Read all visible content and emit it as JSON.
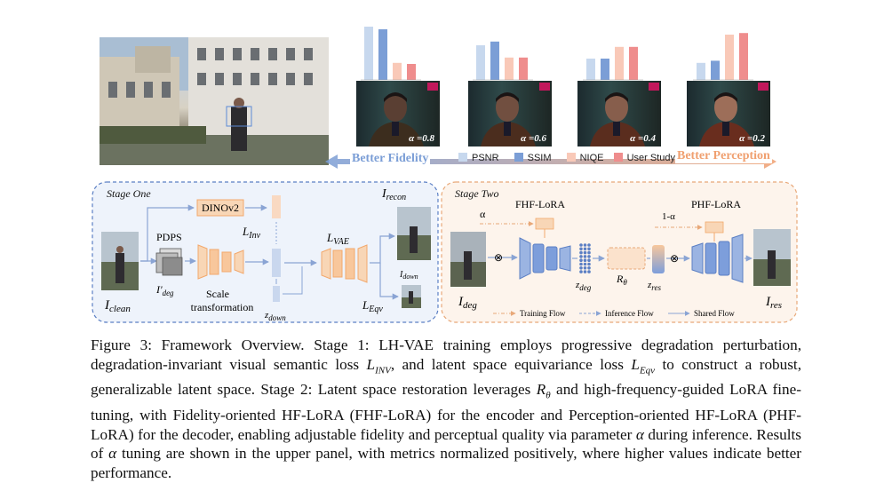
{
  "top_panel": {
    "alpha_labels": [
      "α =0.8",
      "α =0.6",
      "α =0.4",
      "α =0.2"
    ],
    "arrow_left_label": "Better Fidelity",
    "arrow_right_label": "Better Perception",
    "legend": [
      {
        "label": "PSNR",
        "color": "#c7d8ee"
      },
      {
        "label": "SSIM",
        "color": "#7b9ed6"
      },
      {
        "label": "NIQE",
        "color": "#f9c9b8"
      },
      {
        "label": "User Study",
        "color": "#ef8d8d"
      }
    ],
    "metric_bars": [
      {
        "alpha": "0.8",
        "values": [
          1.0,
          0.95,
          0.32,
          0.3
        ]
      },
      {
        "alpha": "0.6",
        "values": [
          0.65,
          0.72,
          0.42,
          0.42
        ]
      },
      {
        "alpha": "0.4",
        "values": [
          0.4,
          0.4,
          0.62,
          0.62
        ]
      },
      {
        "alpha": "0.2",
        "values": [
          0.32,
          0.36,
          0.85,
          0.88
        ]
      }
    ]
  },
  "stage_one": {
    "title": "Stage One",
    "dinov2": "DINOv2",
    "pdps": "PDPS",
    "scale_line1": "Scale",
    "scale_line2": "transformation",
    "L_inv": "L",
    "L_inv_sub": "Inv",
    "L_vae": "L",
    "L_vae_sub": "VAE",
    "L_eqv": "L",
    "L_eqv_sub": "Eqv",
    "I_recon": "I",
    "I_recon_sub": "recon",
    "I_down": "I",
    "I_down_sub": "down",
    "I_clean": "I",
    "I_clean_sub": "clean",
    "I_deg_prime": "I'",
    "I_deg_prime_sub": "deg",
    "z_down": "z",
    "z_down_sub": "down"
  },
  "stage_two": {
    "title": "Stage Two",
    "fhf": "FHF-LoRA",
    "phf": "PHF-LoRA",
    "alpha": "α",
    "one_minus_alpha": "1-α",
    "z_deg": "z",
    "z_deg_sub": "deg",
    "r_theta": "R",
    "r_theta_sub": "θ",
    "z_res": "z",
    "z_res_sub": "res",
    "I_deg": "I",
    "I_deg_sub": "deg",
    "I_res": "I",
    "I_res_sub": "res",
    "flow_training": "Training Flow",
    "flow_inference": "Inference Flow",
    "flow_shared": "Shared Flow"
  },
  "caption": {
    "text": "Figure 3: Framework Overview. Stage 1: LH-VAE training employs progressive degradation perturbation, degradation-invariant visual semantic loss L_INV, and latent space equivariance loss L_Eqv to construct a robust, generalizable latent space. Stage 2: Latent space restoration leverages R_θ and high-frequency-guided LoRA fine-tuning, with Fidelity-oriented HF-LoRA (FHF-LoRA) for the encoder and Perception-oriented HF-LoRA (PHF-LoRA) for the decoder, enabling adjustable fidelity and perceptual quality via parameter α during inference. Results of α tuning are shown in the upper panel, with metrics normalized positively, where higher values indicate better performance.",
    "parts": {
      "p1": "Figure 3: Framework Overview.  Stage 1:  LH-VAE training employs progressive degradation perturbation, degradation-invariant visual semantic loss ",
      "m1": "L",
      "m1s": "INV",
      "p2": ", and latent space equivariance loss ",
      "m2": "L",
      "m2s": "Eqv",
      "p3": " to construct a robust, generalizable latent space. Stage 2: Latent space restoration leverages ",
      "m3": "R",
      "m3s": "θ",
      "p4": " and high-frequency-guided LoRA fine-tuning, with Fidelity-oriented HF-LoRA (FHF-LoRA) for the encoder and Perception-oriented HF-LoRA (PHF-LoRA) for the decoder, enabling adjustable fidelity and perceptual quality via parameter ",
      "m4": "α",
      "p5": " during inference. Results of ",
      "m5": "α",
      "p6": " tuning are shown in the upper panel, with metrics normalized positively, where higher values indicate better performance."
    }
  },
  "colors": {
    "stage_one_border": "#5b7fc4",
    "stage_one_fill": "#eef3fb",
    "stage_two_border": "#e8a878",
    "stage_two_fill": "#fdf4ec",
    "block_orange": "#f8c79c",
    "block_blue": "#7d9edb",
    "fidelity_text": "#7b9ed6",
    "perception_text": "#f0a070"
  }
}
